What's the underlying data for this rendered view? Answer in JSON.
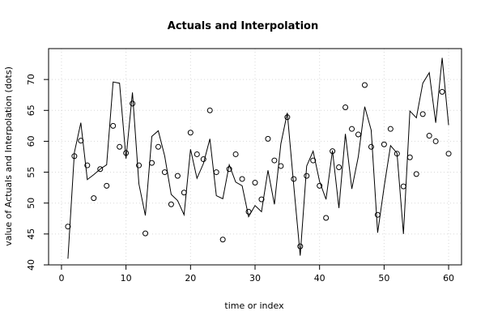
{
  "chart_data": {
    "type": "line",
    "title": "Actuals and Interpolation",
    "xlabel": "time or index",
    "ylabel": "value of Actuals and Interpolation (dots)",
    "xlim": [
      -2,
      62
    ],
    "ylim": [
      40,
      75
    ],
    "x_ticks": [
      0,
      10,
      20,
      30,
      40,
      50,
      60
    ],
    "y_ticks": [
      40,
      45,
      50,
      55,
      60,
      65,
      70
    ],
    "grid": true,
    "x": [
      1,
      2,
      3,
      4,
      5,
      6,
      7,
      8,
      9,
      10,
      11,
      12,
      13,
      14,
      15,
      16,
      17,
      18,
      19,
      20,
      21,
      22,
      23,
      24,
      25,
      26,
      27,
      28,
      29,
      30,
      31,
      32,
      33,
      34,
      35,
      36,
      37,
      38,
      39,
      40,
      41,
      42,
      43,
      44,
      45,
      46,
      47,
      48,
      49,
      50,
      51,
      52,
      53,
      54,
      55,
      56,
      57,
      58,
      59,
      60
    ],
    "series": [
      {
        "style": "points",
        "values": [
          46.2,
          57.6,
          60.1,
          56.1,
          50.8,
          55.5,
          52.8,
          62.5,
          59.1,
          58.1,
          66.1,
          56.1,
          45.1,
          56.5,
          59.1,
          55.0,
          49.8,
          54.4,
          51.7,
          61.4,
          57.9,
          57.1,
          65.0,
          55.0,
          44.1,
          55.5,
          57.9,
          53.9,
          48.6,
          53.3,
          50.6,
          60.4,
          56.9,
          56.0,
          63.9,
          53.9,
          43.0,
          54.4,
          56.9,
          52.8,
          47.6,
          58.4,
          55.8,
          65.5,
          62.0,
          61.1,
          69.1,
          59.1,
          48.1,
          59.5,
          62.0,
          58.0,
          52.7,
          57.4,
          54.7,
          64.4,
          60.9,
          60.0,
          68.0,
          58.0
        ]
      },
      {
        "style": "line",
        "values": [
          41.0,
          58.2,
          63.0,
          53.8,
          54.6,
          55.5,
          56.2,
          69.6,
          69.4,
          57.2,
          67.9,
          53.1,
          48.0,
          60.8,
          61.7,
          57.6,
          51.4,
          50.4,
          48.1,
          58.7,
          54.0,
          56.4,
          60.4,
          51.2,
          50.7,
          56.2,
          53.4,
          52.8,
          47.8,
          49.6,
          48.6,
          55.3,
          49.8,
          59.6,
          64.6,
          52.8,
          41.5,
          56.0,
          58.4,
          53.5,
          50.6,
          58.5,
          49.2,
          61.2,
          52.3,
          57.5,
          65.6,
          61.8,
          45.2,
          52.6,
          59.3,
          58.1,
          45.0,
          64.9,
          63.8,
          69.4,
          71.1,
          63.0,
          73.5,
          62.6
        ]
      }
    ]
  }
}
